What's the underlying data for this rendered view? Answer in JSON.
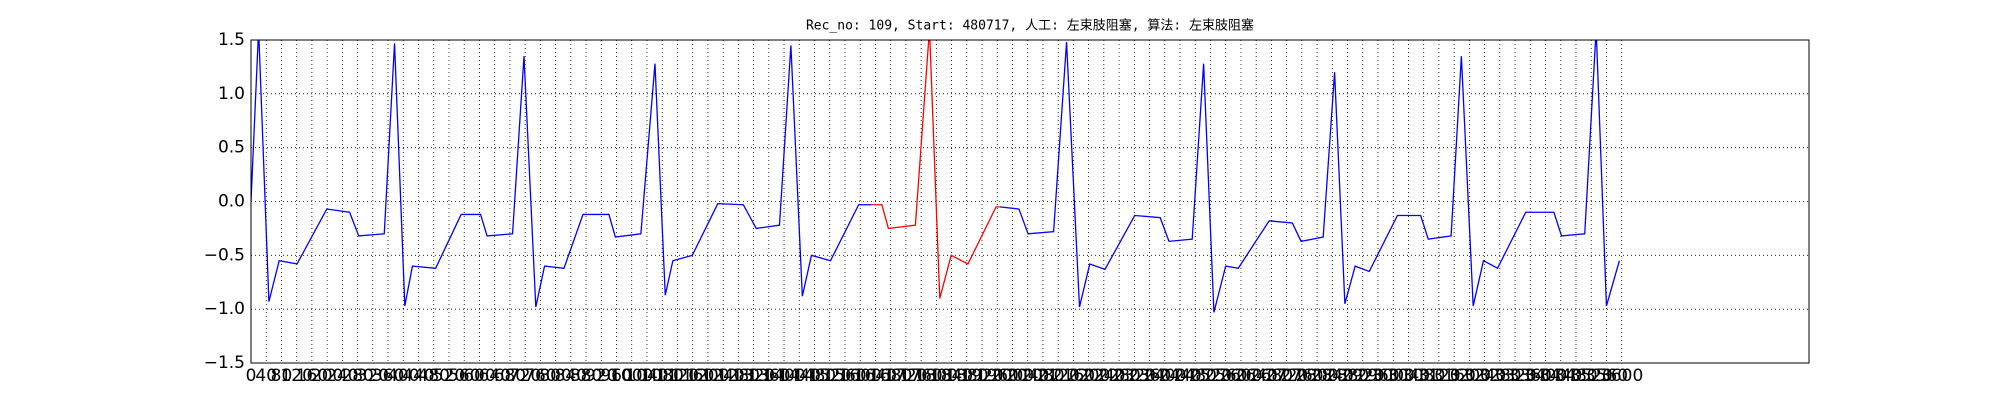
{
  "chart_data": {
    "type": "line",
    "title": "Rec_no: 109, Start: 480717, 人工: 左束肢阻塞, 算法: 左束肢阻塞",
    "xlim": [
      0,
      4092
    ],
    "ylim": [
      -1.5,
      1.5
    ],
    "xticks": [
      0,
      40,
      80,
      120,
      160,
      200,
      240,
      280,
      320,
      360,
      400,
      440,
      480,
      520,
      560,
      600,
      640,
      680,
      720,
      760,
      800,
      840,
      880,
      920,
      960,
      1000,
      1040,
      1080,
      1120,
      1160,
      1200,
      1240,
      1280,
      1320,
      1360,
      1400,
      1440,
      1480,
      1520,
      1560,
      1600,
      1640,
      1680,
      1720,
      1760,
      1800,
      1840,
      1880,
      1920,
      1960,
      2000,
      2040,
      2080,
      2120,
      2160,
      2200,
      2240,
      2280,
      2320,
      2360,
      2400,
      2440,
      2480,
      2520,
      2560,
      2600,
      2640,
      2680,
      2720,
      2760,
      2800,
      2840,
      2880,
      2920,
      2960,
      3000,
      3040,
      3080,
      3120,
      3160,
      3200,
      3240,
      3280,
      3320,
      3360,
      3400,
      3440,
      3480,
      3520,
      3560,
      3600
    ],
    "yticks": [
      {
        "value": -1.5,
        "label": "−1.5"
      },
      {
        "value": -1,
        "label": "−1.0"
      },
      {
        "value": -0.5,
        "label": "−0.5"
      },
      {
        "value": 0,
        "label": "0.0"
      },
      0.5,
      {
        "value": 1,
        "label": "1.0"
      },
      1.5
    ],
    "grid": true,
    "series": [
      {
        "color": "#0000ff",
        "x": [
          0,
          20,
          47,
          74,
          121,
          199,
          259,
          283,
          350,
          377,
          404,
          424,
          485,
          552,
          603,
          620,
          687,
          717,
          748,
          771,
          822,
          872,
          940,
          957,
          1024,
          1061,
          1088,
          1108,
          1159,
          1226,
          1293,
          1327,
          1388,
          1418,
          1448,
          1472,
          1522,
          1596,
          1630,
          1800,
          1967,
          2017,
          2041,
          2108,
          2142,
          2176,
          2203,
          2243,
          2321,
          2388,
          2411,
          2472,
          2502,
          2529,
          2560,
          2593,
          2674,
          2735,
          2758,
          2816,
          2846,
          2873,
          2900,
          2937,
          3011,
          3072,
          3092,
          3152,
          3179,
          3210,
          3237,
          3274,
          3348,
          3422,
          3442,
          3503,
          3533,
          3560,
          3594
        ],
        "values": [
          0.0,
          1.6,
          -0.93,
          -0.55,
          -0.58,
          -0.07,
          -0.1,
          -0.32,
          -0.3,
          1.47,
          -0.97,
          -0.6,
          -0.62,
          -0.12,
          -0.12,
          -0.32,
          -0.3,
          1.35,
          -0.98,
          -0.6,
          -0.62,
          -0.12,
          -0.12,
          -0.33,
          -0.3,
          1.28,
          -0.87,
          -0.55,
          -0.5,
          -0.02,
          -0.03,
          -0.25,
          -0.22,
          1.45,
          -0.88,
          -0.5,
          -0.55,
          -0.03,
          -0.03,
          null,
          -0.05,
          -0.07,
          -0.3,
          -0.28,
          1.48,
          -0.98,
          -0.58,
          -0.63,
          -0.13,
          -0.15,
          -0.37,
          -0.35,
          1.28,
          -1.03,
          -0.6,
          -0.62,
          -0.18,
          -0.2,
          -0.37,
          -0.33,
          1.2,
          -0.95,
          -0.6,
          -0.65,
          -0.13,
          -0.13,
          -0.35,
          -0.32,
          1.35,
          -0.97,
          -0.55,
          -0.62,
          -0.1,
          -0.1,
          -0.32,
          -0.3,
          1.6,
          -0.97,
          -0.55
        ]
      },
      {
        "color": "#ff0000",
        "x": [
          1630,
          1657,
          1674,
          1745,
          1782,
          1809,
          1839,
          1883,
          1957,
          1967
        ],
        "values": [
          -0.03,
          -0.03,
          -0.25,
          -0.22,
          1.6,
          -0.9,
          -0.5,
          -0.58,
          -0.05,
          -0.05
        ]
      }
    ]
  }
}
